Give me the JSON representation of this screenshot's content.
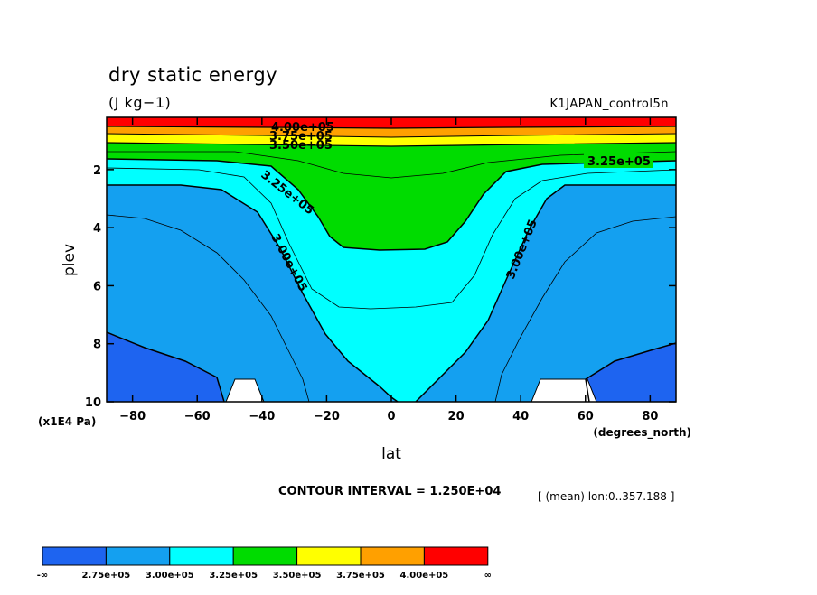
{
  "chart_data": {
    "type": "contour",
    "title": "dry static energy",
    "units": "(J kg−1)",
    "run_name": "K1JAPAN_control5n",
    "xlabel": "lat",
    "xunits": "(degrees_north)",
    "ylabel": "plev",
    "yunits": "(x1E4 Pa)",
    "xlim": [
      -88,
      88
    ],
    "ylim": [
      10,
      0.2
    ],
    "x_ticks": [
      -80,
      -60,
      -40,
      -20,
      0,
      20,
      40,
      60,
      80
    ],
    "y_ticks": [
      2,
      4,
      6,
      8,
      10
    ],
    "contour_interval_text": "CONTOUR INTERVAL = 1.250E+04",
    "mean_note": "[ (mean) lon:0..357.188 ]",
    "levels": [
      {
        "range": "-∞ .. 2.75e+05",
        "color": "#1e64f0"
      },
      {
        "range": "2.75e+05 .. 3.00e+05",
        "color": "#14a0f0"
      },
      {
        "range": "3.00e+05 .. 3.25e+05",
        "color": "#00ffff"
      },
      {
        "range": "3.25e+05 .. 3.50e+05",
        "color": "#00dc00"
      },
      {
        "range": "3.50e+05 .. 3.75e+05",
        "color": "#ffff00"
      },
      {
        "range": "3.75e+05 .. 4.00e+05",
        "color": "#ffa000"
      },
      {
        "range": "4.00e+05 .. ∞",
        "color": "#ff0000"
      }
    ],
    "contour_labels": [
      "4.00e+05",
      "3.75e+05",
      "3.50e+05",
      "3.25e+05",
      "3.25e+05",
      "3.00e+05",
      "3.00e+05"
    ],
    "colorbar_labels": [
      "-∞",
      "2.75e+05",
      "3.00e+05",
      "3.25e+05",
      "3.50e+05",
      "3.75e+05",
      "4.00e+05",
      "∞"
    ]
  }
}
